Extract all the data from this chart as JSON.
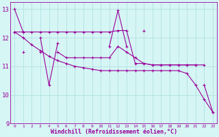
{
  "x": [
    0,
    1,
    2,
    3,
    4,
    5,
    6,
    7,
    8,
    9,
    10,
    11,
    12,
    13,
    14,
    15,
    16,
    17,
    18,
    19,
    20,
    21,
    22,
    23
  ],
  "series1": [
    13.0,
    12.2,
    null,
    12.0,
    10.35,
    11.8,
    null,
    null,
    null,
    null,
    null,
    11.7,
    12.95,
    11.7,
    null,
    12.25,
    null,
    null,
    null,
    null,
    null,
    null,
    10.35,
    9.4
  ],
  "series2": [
    null,
    11.5,
    null,
    11.5,
    null,
    11.5,
    11.3,
    11.3,
    11.3,
    11.3,
    11.3,
    11.3,
    11.7,
    11.5,
    11.3,
    11.1,
    11.05,
    11.05,
    11.05,
    11.05,
    11.05,
    11.05,
    null,
    null
  ],
  "series3": [
    12.2,
    12.2,
    12.2,
    12.2,
    12.2,
    12.2,
    12.2,
    12.2,
    12.2,
    12.2,
    12.2,
    12.2,
    12.25,
    12.25,
    11.1,
    11.1,
    11.05,
    11.05,
    11.05,
    11.05,
    11.05,
    11.05,
    11.05,
    null
  ],
  "series4": [
    12.2,
    12.0,
    11.75,
    11.55,
    11.35,
    11.2,
    11.1,
    11.0,
    10.95,
    10.9,
    10.85,
    10.85,
    10.85,
    10.85,
    10.85,
    10.85,
    10.85,
    10.85,
    10.85,
    10.85,
    10.75,
    10.35,
    9.85,
    9.4
  ],
  "line_color": "#990099",
  "bg_color": "#d6f5f5",
  "grid_color": "#aadddd",
  "xlabel": "Windchill (Refroidissement éolien,°C)",
  "xlim": [
    -0.5,
    23.5
  ],
  "ylim": [
    9,
    13.25
  ],
  "yticks": [
    9,
    10,
    11,
    12,
    13
  ],
  "xticks": [
    0,
    1,
    2,
    3,
    4,
    5,
    6,
    7,
    8,
    9,
    10,
    11,
    12,
    13,
    14,
    15,
    16,
    17,
    18,
    19,
    20,
    21,
    22,
    23
  ],
  "marker": "+",
  "markersize": 3,
  "linewidth": 0.8
}
